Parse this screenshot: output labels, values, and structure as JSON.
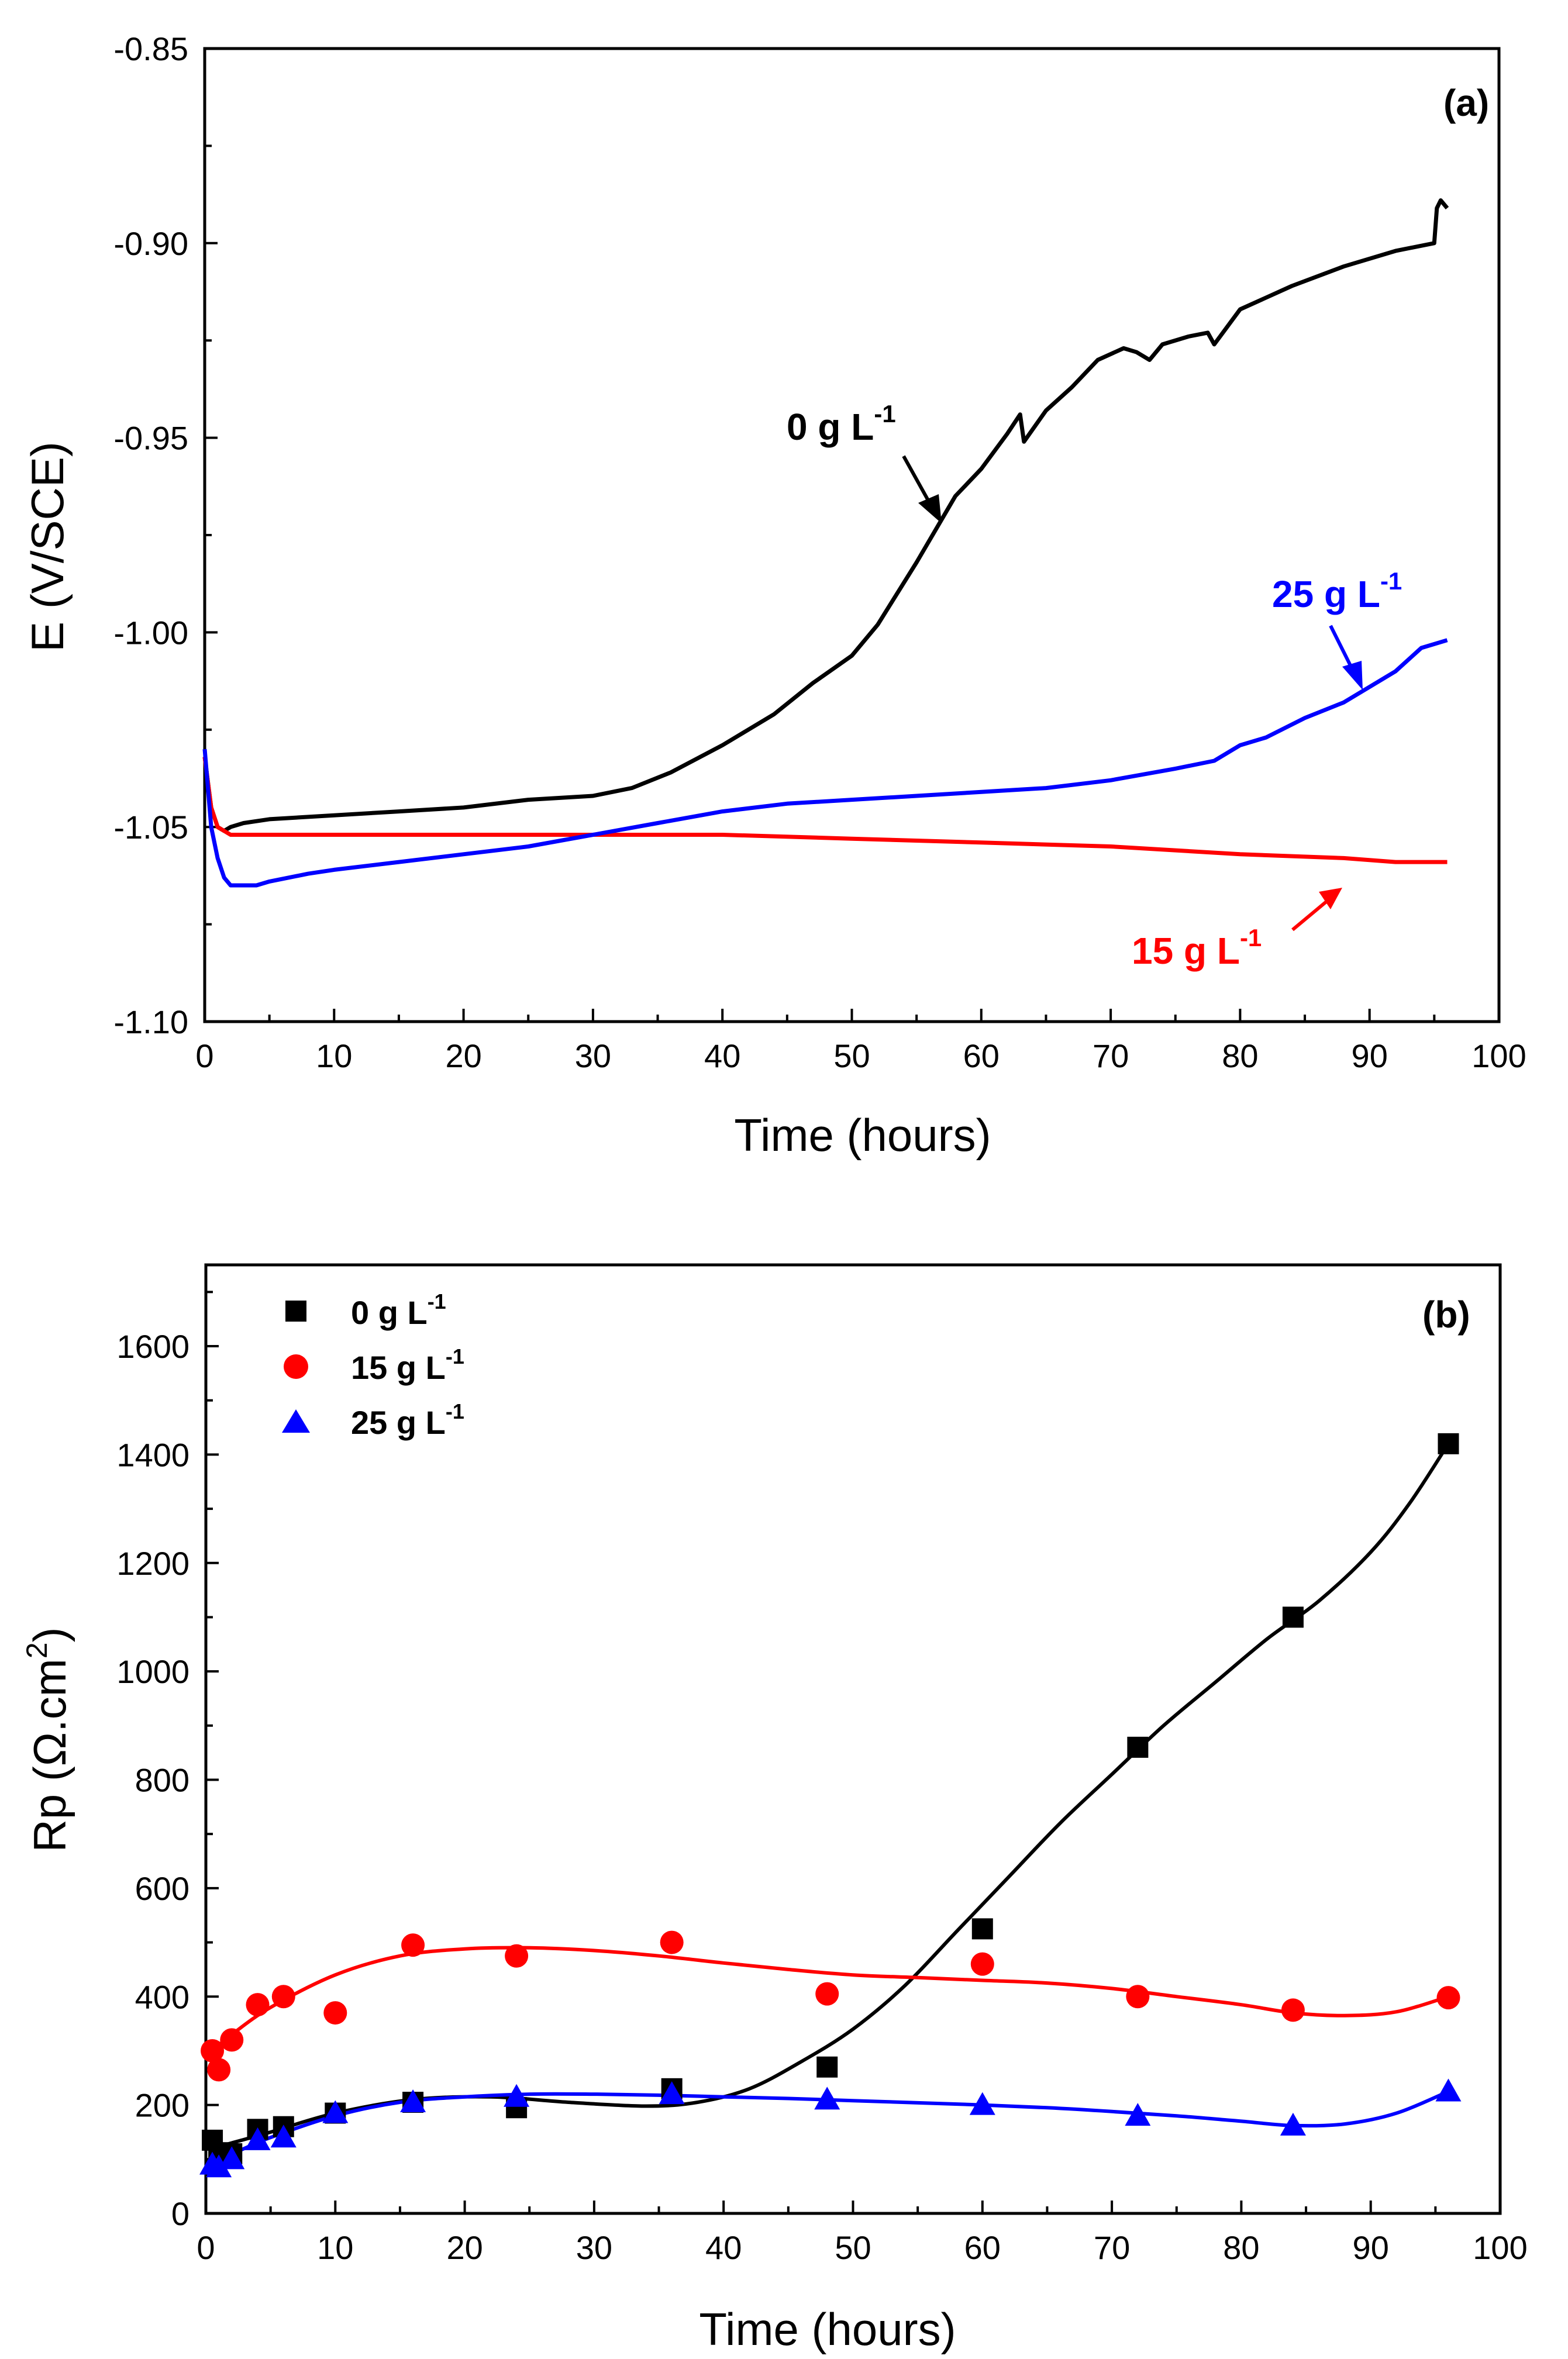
{
  "chart_data": [
    {
      "type": "line",
      "panel_label": "(a)",
      "xlabel": "Time (hours)",
      "ylabel": "E (V/SCE)",
      "xlim": [
        0,
        100
      ],
      "ylim": [
        -1.1,
        -0.85
      ],
      "xticks": [
        "0",
        "10",
        "20",
        "30",
        "40",
        "50",
        "60",
        "70",
        "80",
        "90",
        "100"
      ],
      "yticks": [
        "-0.85",
        "-0.90",
        "-0.95",
        "-1.00",
        "-1.05",
        "-1.10"
      ],
      "grid": false,
      "series": [
        {
          "name": "0 g L-1",
          "color": "#000000",
          "x": [
            0,
            0.5,
            1,
            1.5,
            2,
            3,
            5,
            10,
            15,
            20,
            25,
            30,
            33,
            36,
            40,
            44,
            47,
            50,
            52,
            55,
            58,
            60,
            62,
            63,
            63.3,
            65,
            67,
            69,
            71,
            72,
            73,
            74,
            76,
            77.5,
            78,
            80,
            84,
            88,
            92,
            95,
            95.2,
            95.5,
            96
          ],
          "y": [
            -1.032,
            -1.045,
            -1.05,
            -1.051,
            -1.05,
            -1.049,
            -1.048,
            -1.047,
            -1.046,
            -1.045,
            -1.043,
            -1.042,
            -1.04,
            -1.036,
            -1.029,
            -1.021,
            -1.013,
            -1.006,
            -0.998,
            -0.982,
            -0.965,
            -0.958,
            -0.949,
            -0.944,
            -0.951,
            -0.943,
            -0.937,
            -0.93,
            -0.927,
            -0.928,
            -0.93,
            -0.926,
            -0.924,
            -0.923,
            -0.926,
            -0.917,
            -0.911,
            -0.906,
            -0.902,
            -0.9,
            -0.891,
            -0.889,
            -0.891
          ]
        },
        {
          "name": "15 g L-1",
          "color": "#ff0000",
          "x": [
            0,
            0.5,
            1,
            1.5,
            2,
            3,
            5,
            10,
            20,
            30,
            40,
            50,
            60,
            70,
            80,
            88,
            92,
            96
          ],
          "y": [
            -1.032,
            -1.045,
            -1.05,
            -1.051,
            -1.052,
            -1.052,
            -1.052,
            -1.052,
            -1.052,
            -1.052,
            -1.052,
            -1.053,
            -1.054,
            -1.055,
            -1.057,
            -1.058,
            -1.059,
            -1.059
          ]
        },
        {
          "name": "25 g L-1",
          "color": "#0000ff",
          "x": [
            0,
            0.5,
            1,
            1.5,
            2,
            3,
            4,
            5,
            8,
            10,
            15,
            20,
            25,
            30,
            35,
            40,
            45,
            50,
            55,
            60,
            65,
            70,
            75,
            78,
            80,
            82,
            85,
            88,
            90,
            92,
            94,
            96
          ],
          "y": [
            -1.03,
            -1.05,
            -1.058,
            -1.063,
            -1.065,
            -1.065,
            -1.065,
            -1.064,
            -1.062,
            -1.061,
            -1.059,
            -1.057,
            -1.055,
            -1.052,
            -1.049,
            -1.046,
            -1.044,
            -1.043,
            -1.042,
            -1.041,
            -1.04,
            -1.038,
            -1.035,
            -1.033,
            -1.029,
            -1.027,
            -1.022,
            -1.018,
            -1.014,
            -1.01,
            -1.004,
            -1.002
          ]
        }
      ],
      "annotations": [
        {
          "text": "0 g L",
          "sup": "-1",
          "color": "#000000"
        },
        {
          "text": "25 g L",
          "sup": "-1",
          "color": "#0000ff"
        },
        {
          "text": "15 g L",
          "sup": "-1",
          "color": "#ff0000"
        }
      ]
    },
    {
      "type": "scatter",
      "panel_label": "(b)",
      "xlabel": "Time (hours)",
      "ylabel": "Rp (Ω.cm",
      "ylabel_sup": "2",
      "ylabel_close": ")",
      "xlim": [
        0,
        100
      ],
      "ylim": [
        0,
        1750
      ],
      "xticks": [
        "0",
        "10",
        "20",
        "30",
        "40",
        "50",
        "60",
        "70",
        "80",
        "90",
        "100"
      ],
      "yticks": [
        "0",
        "200",
        "400",
        "600",
        "800",
        "1000",
        "1200",
        "1400",
        "1600"
      ],
      "grid": false,
      "legend": "top-left",
      "series": [
        {
          "name": "0 g L",
          "sup": "-1",
          "color": "#000000",
          "marker": "square",
          "x": [
            0.5,
            1,
            2,
            4,
            6,
            10,
            16,
            24,
            36,
            48,
            60,
            72,
            84,
            96
          ],
          "y": [
            135,
            112,
            110,
            155,
            160,
            185,
            205,
            195,
            230,
            270,
            525,
            860,
            1100,
            1420
          ],
          "fit_x": [
            0.5,
            2,
            5,
            10,
            16,
            22,
            28,
            34,
            38,
            42,
            46,
            50,
            54,
            58,
            62,
            66,
            70,
            74,
            78,
            82,
            86,
            90,
            93,
            96
          ],
          "fit_y": [
            120,
            130,
            150,
            185,
            210,
            215,
            205,
            198,
            205,
            230,
            280,
            340,
            420,
            520,
            620,
            720,
            810,
            900,
            980,
            1060,
            1130,
            1220,
            1310,
            1420
          ]
        },
        {
          "name": "15 g L",
          "sup": "-1",
          "color": "#ff0000",
          "marker": "circle",
          "x": [
            0.5,
            1,
            2,
            4,
            6,
            10,
            16,
            24,
            36,
            48,
            60,
            72,
            84,
            96
          ],
          "y": [
            300,
            265,
            320,
            385,
            400,
            370,
            495,
            475,
            500,
            405,
            460,
            400,
            375,
            398
          ],
          "fit_x": [
            0.5,
            2,
            5,
            10,
            15,
            20,
            25,
            30,
            35,
            40,
            45,
            50,
            55,
            60,
            65,
            70,
            75,
            80,
            84,
            88,
            92,
            96
          ],
          "fit_y": [
            300,
            330,
            380,
            440,
            475,
            488,
            490,
            485,
            475,
            462,
            450,
            440,
            435,
            430,
            425,
            415,
            400,
            385,
            370,
            365,
            372,
            400
          ]
        },
        {
          "name": "25 g L",
          "sup": "-1",
          "color": "#0000ff",
          "marker": "triangle",
          "x": [
            0.5,
            1,
            2,
            4,
            6,
            10,
            16,
            24,
            36,
            48,
            60,
            72,
            84,
            96
          ],
          "y": [
            90,
            85,
            100,
            135,
            140,
            185,
            205,
            215,
            220,
            210,
            200,
            180,
            162,
            225
          ],
          "fit_x": [
            0.5,
            2,
            5,
            10,
            15,
            20,
            25,
            30,
            35,
            40,
            45,
            50,
            55,
            60,
            65,
            70,
            75,
            80,
            84,
            88,
            92,
            96
          ],
          "fit_y": [
            100,
            110,
            140,
            180,
            205,
            215,
            220,
            220,
            218,
            215,
            212,
            208,
            204,
            200,
            195,
            188,
            180,
            170,
            162,
            165,
            185,
            225
          ]
        }
      ]
    }
  ]
}
